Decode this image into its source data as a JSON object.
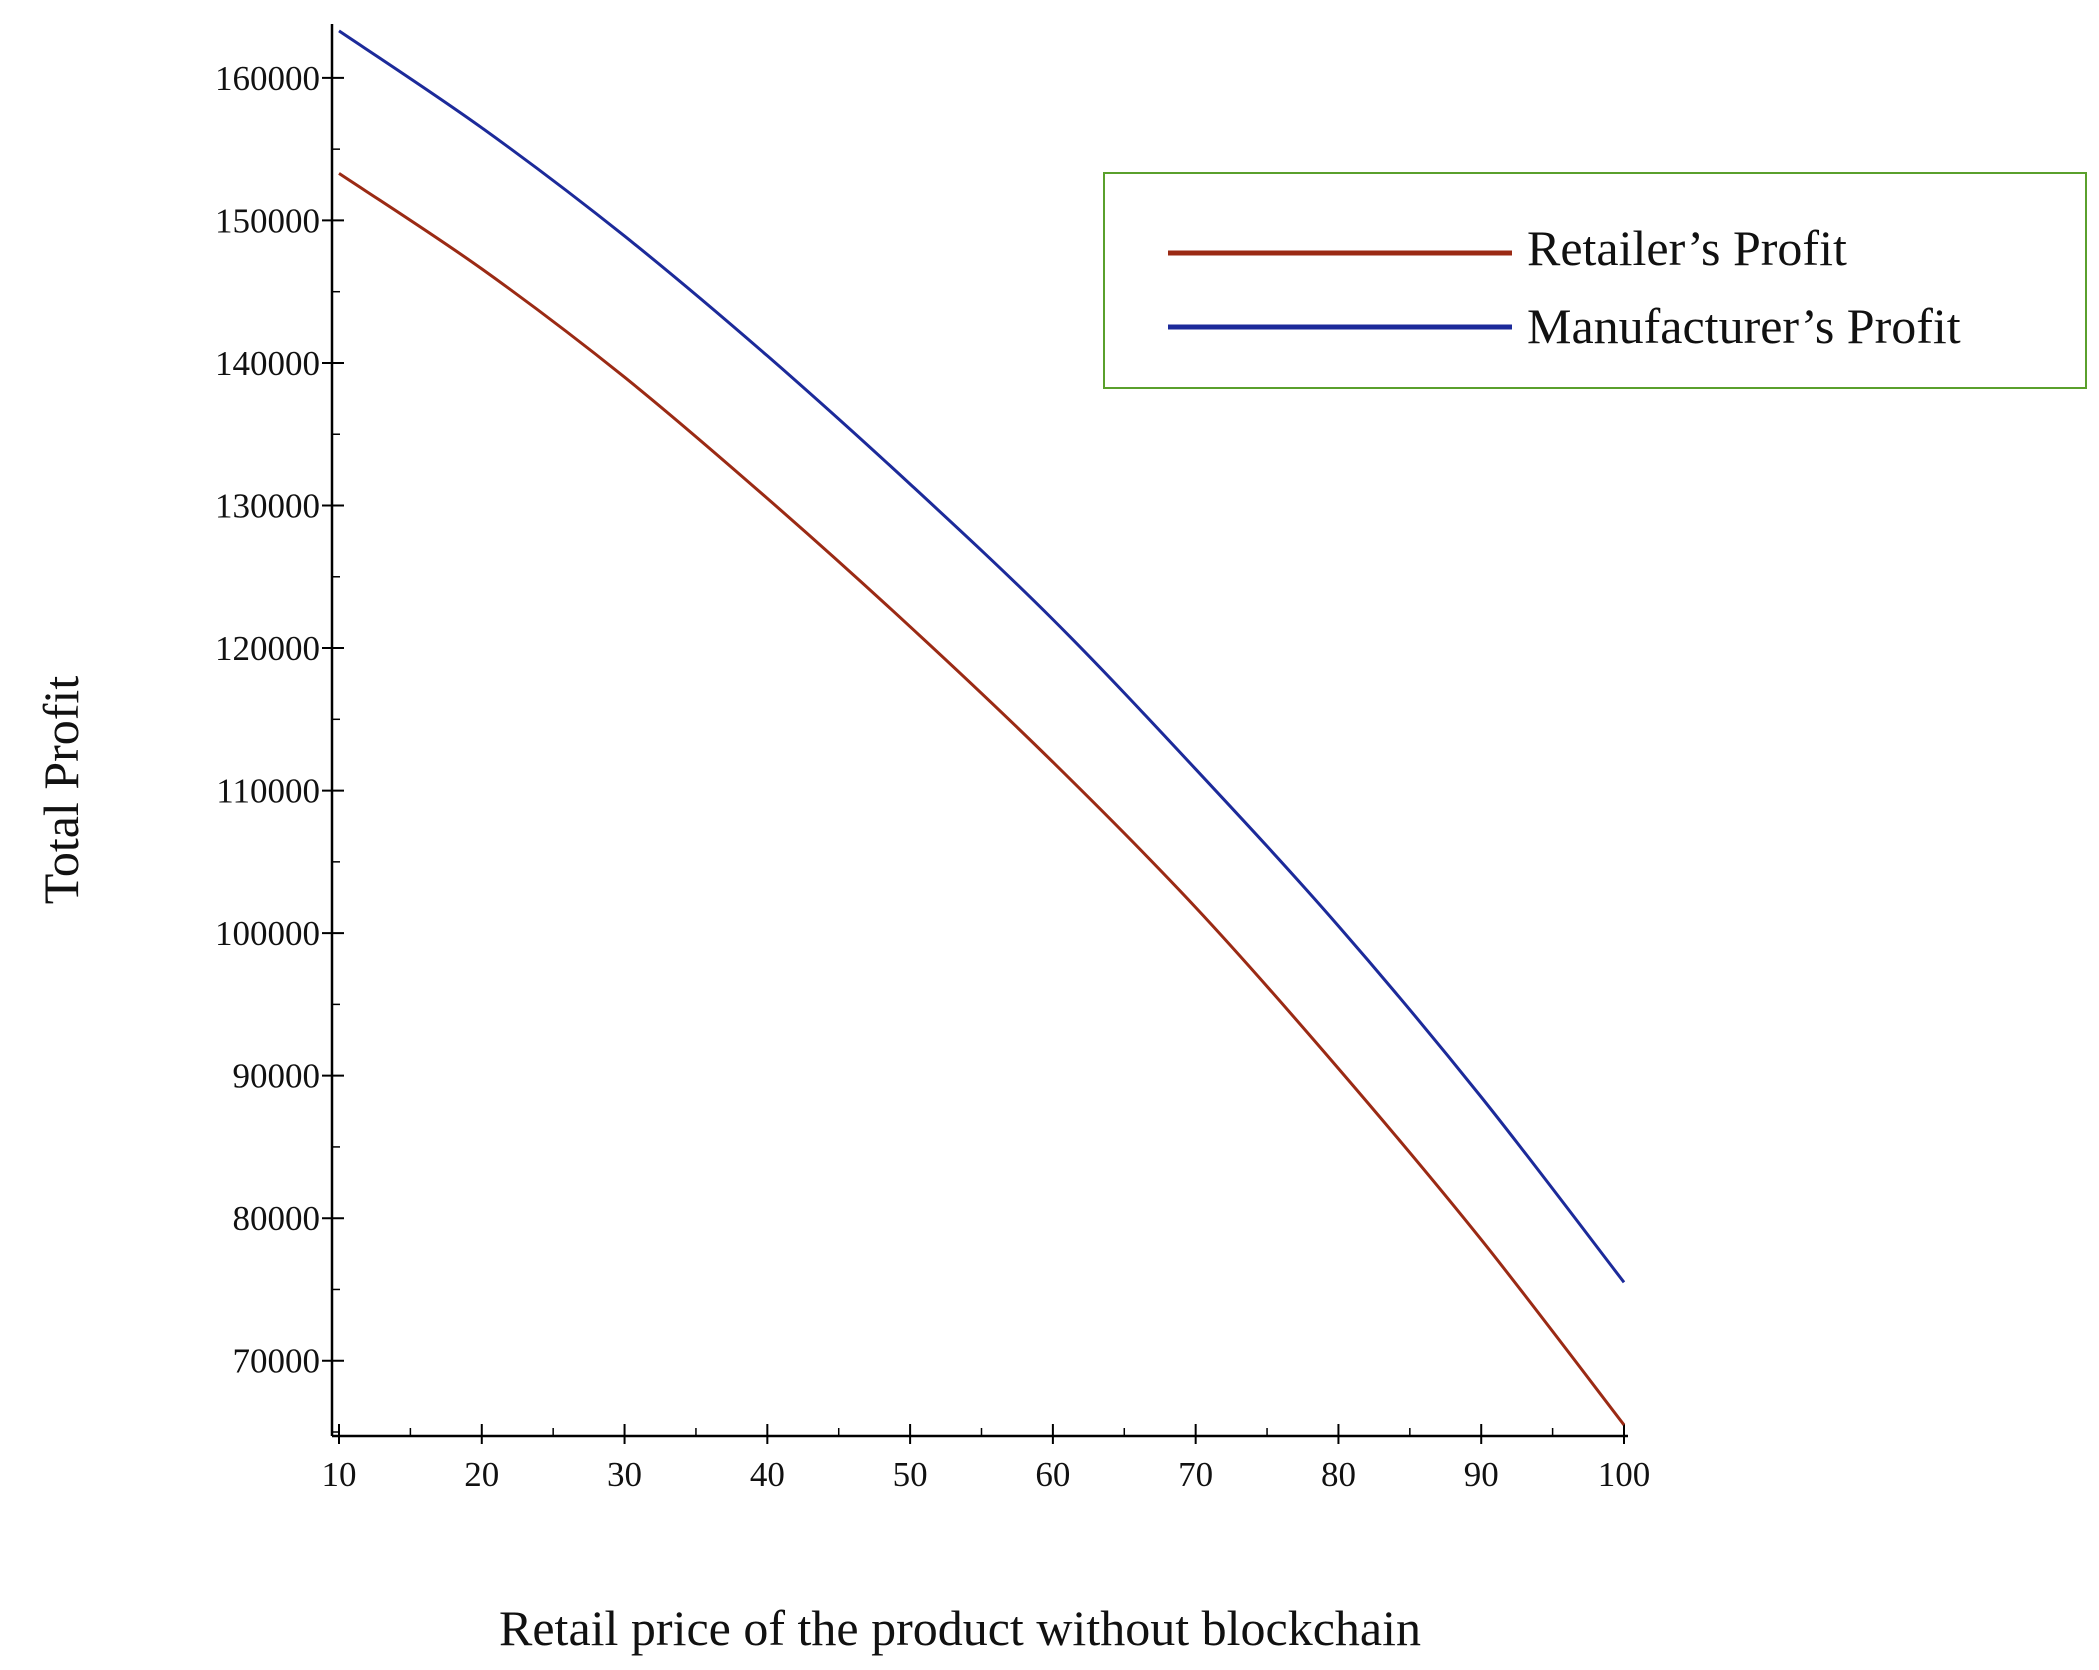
{
  "chart_data": {
    "type": "line",
    "title": "",
    "xlabel": "Retail price of the product without blockchain",
    "ylabel": "Total Profit",
    "xlim": [
      10,
      100
    ],
    "ylim": [
      65000,
      163500
    ],
    "x_ticks": [
      10,
      20,
      30,
      40,
      50,
      60,
      70,
      80,
      90,
      100
    ],
    "y_ticks": [
      70000,
      80000,
      90000,
      100000,
      110000,
      120000,
      130000,
      140000,
      150000,
      160000
    ],
    "x_minor_step": 5,
    "y_minor_step": 5000,
    "grid": false,
    "legend_position": "top-right",
    "x": [
      10,
      20,
      30,
      40,
      50,
      60,
      70,
      80,
      90,
      100
    ],
    "series": [
      {
        "name": "Retailer’s Profit",
        "color": "#9b2a14",
        "values": [
          153300,
          146600,
          139000,
          130500,
          121500,
          112000,
          101800,
          90500,
          78500,
          65500
        ]
      },
      {
        "name": "Manufacturer’s Profit",
        "color": "#1c2a9a",
        "values": [
          163300,
          156500,
          148900,
          140500,
          131500,
          122000,
          111500,
          100500,
          88500,
          75500
        ]
      }
    ],
    "legend_border_color": "#5aa02c"
  }
}
